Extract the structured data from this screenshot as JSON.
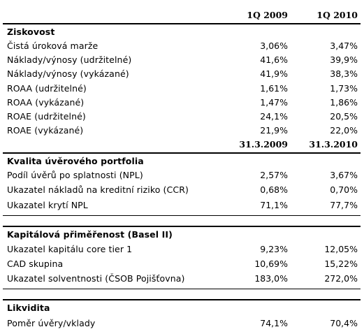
{
  "header": {
    "col1": "1Q 2009",
    "col2": "1Q 2010"
  },
  "sections": [
    {
      "title": "Ziskovost",
      "rows": [
        {
          "label": "Čistá úroková marže",
          "v1": "3,06%",
          "v2": "3,47%"
        },
        {
          "label": "Náklady/výnosy (udržitelné)",
          "v1": "41,6%",
          "v2": "39,9%"
        },
        {
          "label": "Náklady/výnosy (vykázané)",
          "v1": "41,9%",
          "v2": "38,3%"
        },
        {
          "label": "ROAA (udržitelné)",
          "v1": "1,61%",
          "v2": "1,73%"
        },
        {
          "label": "ROAA (vykázané)",
          "v1": "1,47%",
          "v2": "1,86%"
        },
        {
          "label": "ROAE (udržitelné)",
          "v1": "24,1%",
          "v2": "20,5%"
        },
        {
          "label": "ROAE (vykázané)",
          "v1": "21,9%",
          "v2": "22,0%"
        }
      ],
      "date_header": {
        "col1": "31.3.2009",
        "col2": "31.3.2010"
      }
    },
    {
      "title": "Kvalita úvěrového portfolia",
      "rows": [
        {
          "label": "Podíl úvěrů po splatnosti (NPL)",
          "v1": "2,57%",
          "v2": "3,67%"
        },
        {
          "label": "Ukazatel nákladů na kreditní riziko (CCR)",
          "v1": "0,68%",
          "v2": "0,70%"
        },
        {
          "label": "Ukazatel krytí NPL",
          "v1": "71,1%",
          "v2": "77,7%"
        }
      ]
    },
    {
      "title": "Kapitálová přiměřenost (Basel II)",
      "rows": [
        {
          "label": "Ukazatel kapitálu core tier 1",
          "v1": "9,23%",
          "v2": "12,05%"
        },
        {
          "label": "CAD skupina",
          "v1": "10,69%",
          "v2": "15,22%"
        },
        {
          "label": "Ukazatel solventnosti (ČSOB Pojišťovna)",
          "v1": "183,0%",
          "v2": "272,0%"
        }
      ]
    },
    {
      "title": "Likvidita",
      "rows": [
        {
          "label": "Poměr úvěry/vklady",
          "v1": "74,1%",
          "v2": "70,4%"
        }
      ]
    }
  ]
}
